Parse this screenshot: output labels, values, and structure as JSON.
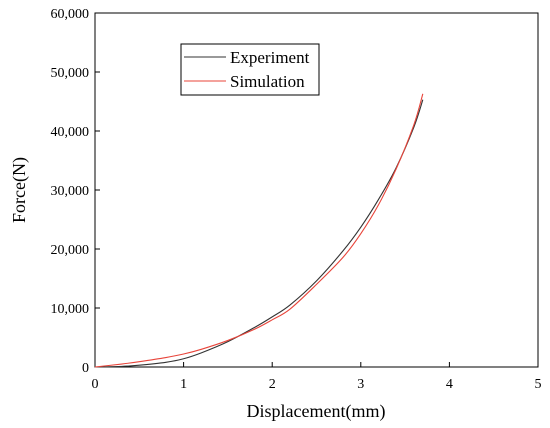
{
  "chart_data": {
    "type": "line",
    "xlabel": "Displacement(mm)",
    "ylabel": "Force(N)",
    "xlim": [
      0,
      5
    ],
    "ylim": [
      0,
      60000
    ],
    "x_ticks": [
      0,
      1,
      2,
      3,
      4,
      5
    ],
    "y_ticks": [
      0,
      10000,
      20000,
      30000,
      40000,
      50000,
      60000
    ],
    "x_tick_labels": [
      "0",
      "1",
      "2",
      "3",
      "4",
      "5"
    ],
    "y_tick_labels": [
      "0",
      "10,000",
      "20,000",
      "30,000",
      "40,000",
      "50,000",
      "60,000"
    ],
    "grid": false,
    "legend_position": "top-left",
    "series": [
      {
        "name": "Experiment",
        "color": "#333333",
        "x": [
          0.0,
          0.3,
          0.5,
          0.8,
          1.0,
          1.2,
          1.5,
          1.8,
          2.0,
          2.2,
          2.5,
          2.8,
          3.0,
          3.2,
          3.4,
          3.6,
          3.7
        ],
        "y": [
          0,
          100,
          300,
          800,
          1400,
          2400,
          4300,
          6700,
          8500,
          10500,
          14600,
          19700,
          23700,
          28400,
          33800,
          40700,
          45300
        ]
      },
      {
        "name": "Simulation",
        "color": "#e8443a",
        "x": [
          0.0,
          0.3,
          0.5,
          0.8,
          1.0,
          1.2,
          1.5,
          1.8,
          2.0,
          2.2,
          2.5,
          2.8,
          3.0,
          3.2,
          3.4,
          3.6,
          3.7
        ],
        "y": [
          0,
          500,
          900,
          1600,
          2200,
          3000,
          4500,
          6400,
          8000,
          9800,
          14000,
          18600,
          22600,
          27500,
          33600,
          41100,
          46300
        ]
      }
    ]
  }
}
